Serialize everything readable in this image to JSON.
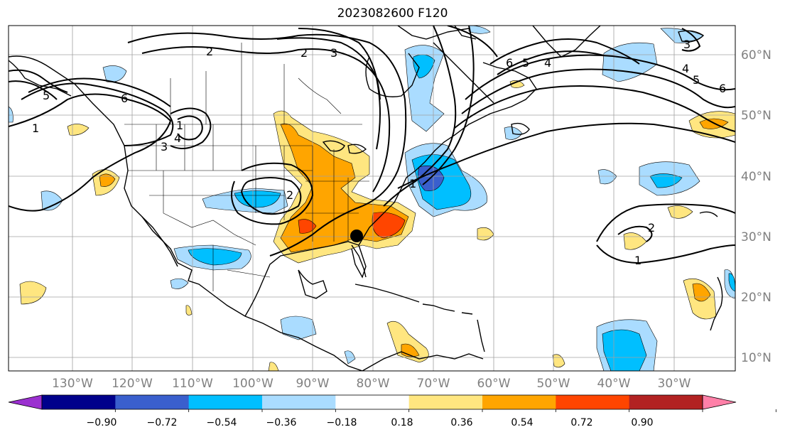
{
  "title": "2023082600 F120",
  "longitude_labels": [
    "130°W",
    "120°W",
    "110°W",
    "100°W",
    "90°W",
    "80°W",
    "70°W",
    "60°W",
    "50°W",
    "40°W",
    "30°W"
  ],
  "latitude_labels": [
    "60°N",
    "50°N",
    "40°N",
    "30°N",
    "20°N",
    "10°N"
  ],
  "colorbar": {
    "tick_labels": [
      "−0.90",
      "−0.72",
      "−0.54",
      "−0.36",
      "−0.18",
      "0.18",
      "0.36",
      "0.54",
      "0.72",
      "0.90"
    ],
    "colors": [
      "#9b30d0",
      "#00008b",
      "#3a5fcd",
      "#00bfff",
      "#aadcff",
      "#ffffff",
      "#ffe680",
      "#ffa500",
      "#ff4500",
      "#b22222",
      "#ff80a8"
    ]
  },
  "contour_labels": [
    "1",
    "2",
    "3",
    "4",
    "5",
    "6",
    "1",
    "2",
    "3",
    "4",
    "5",
    "6",
    "1",
    "2",
    "3",
    "4",
    "5",
    "6",
    "1",
    "2"
  ],
  "marker": "black-dot"
}
